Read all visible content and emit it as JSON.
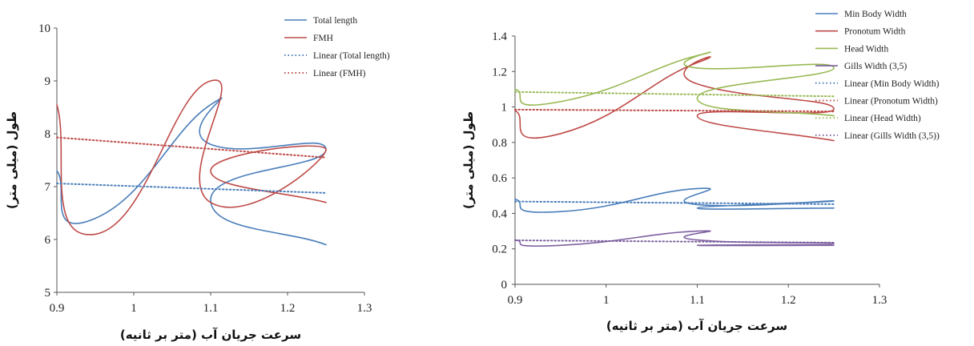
{
  "chart_data": [
    {
      "type": "line",
      "xlabel": "سرعت جریان آب (متر بر ثانیه)",
      "ylabel": "طول (میلی متر)",
      "xlim": [
        0.9,
        1.3
      ],
      "ylim": [
        5,
        10
      ],
      "xticks": [
        "0.9",
        "1",
        "1.1",
        "1.2",
        "1.3"
      ],
      "yticks": [
        "5",
        "6",
        "7",
        "8",
        "9",
        "10"
      ],
      "legend_position": "top-right-outside",
      "series": [
        {
          "name": "Total length",
          "color": "#4a7ebb",
          "style": "solid",
          "points": [
            [
              0.9,
              7.3
            ],
            [
              0.95,
              6.4
            ],
            [
              1.1,
              8.55
            ],
            [
              1.1,
              7.8
            ],
            [
              1.25,
              7.7
            ],
            [
              1.1,
              6.75
            ],
            [
              1.25,
              5.9
            ]
          ]
        },
        {
          "name": "FMH",
          "color": "#be4b48",
          "style": "solid",
          "points": [
            [
              0.9,
              8.55
            ],
            [
              0.95,
              6.1
            ],
            [
              1.1,
              9.0
            ],
            [
              1.1,
              6.7
            ],
            [
              1.25,
              7.7
            ],
            [
              1.1,
              7.3
            ],
            [
              1.25,
              6.7
            ]
          ]
        },
        {
          "name": "Linear (Total length)",
          "color": "#4a7ebb",
          "style": "dotted",
          "points": [
            [
              0.9,
              7.06
            ],
            [
              1.25,
              6.88
            ]
          ]
        },
        {
          "name": "Linear (FMH)",
          "color": "#be4b48",
          "style": "dotted",
          "points": [
            [
              0.9,
              7.93
            ],
            [
              1.25,
              7.55
            ]
          ]
        }
      ]
    },
    {
      "type": "line",
      "xlabel": "سرعت جریان آب (متر بر ثانیه)",
      "ylabel": "طول (میلی متر)",
      "xlim": [
        0.9,
        1.3
      ],
      "ylim": [
        0,
        1.4
      ],
      "xticks": [
        "0.9",
        "1",
        "1.1",
        "1.2",
        "1.3"
      ],
      "yticks": [
        "0",
        "0.2",
        "0.4",
        "0.6",
        "0.8",
        "1",
        "1.2",
        "1.4"
      ],
      "legend_position": "top-right-outside",
      "series": [
        {
          "name": "Min Body Width",
          "color": "#4a7ebb",
          "style": "solid",
          "points": [
            [
              0.9,
              0.48
            ],
            [
              0.95,
              0.41
            ],
            [
              1.1,
              0.54
            ],
            [
              1.1,
              0.45
            ],
            [
              1.25,
              0.47
            ],
            [
              1.1,
              0.43
            ],
            [
              1.25,
              0.43
            ]
          ]
        },
        {
          "name": "Pronotum Width",
          "color": "#be4b48",
          "style": "solid",
          "points": [
            [
              0.9,
              0.98
            ],
            [
              0.95,
              0.85
            ],
            [
              1.1,
              1.25
            ],
            [
              1.1,
              1.13
            ],
            [
              1.25,
              0.99
            ],
            [
              1.1,
              0.95
            ],
            [
              1.25,
              0.81
            ]
          ]
        },
        {
          "name": "Head Width",
          "color": "#98b954",
          "style": "solid",
          "points": [
            [
              0.9,
              1.1
            ],
            [
              0.95,
              1.03
            ],
            [
              1.1,
              1.29
            ],
            [
              1.1,
              1.22
            ],
            [
              1.25,
              1.22
            ],
            [
              1.1,
              1.05
            ],
            [
              1.25,
              0.95
            ]
          ]
        },
        {
          "name": "Gills Width (3,5)",
          "color": "#7d60a0",
          "style": "solid",
          "points": [
            [
              0.9,
              0.25
            ],
            [
              0.95,
              0.22
            ],
            [
              1.1,
              0.3
            ],
            [
              1.1,
              0.25
            ],
            [
              1.25,
              0.23
            ],
            [
              1.1,
              0.22
            ],
            [
              1.25,
              0.22
            ]
          ]
        },
        {
          "name": "Linear (Min Body Width)",
          "color": "#4a7ebb",
          "style": "dotted",
          "points": [
            [
              0.9,
              0.467
            ],
            [
              1.25,
              0.452
            ]
          ]
        },
        {
          "name": "Linear (Pronotum Width)",
          "color": "#be4b48",
          "style": "dotted",
          "points": [
            [
              0.9,
              0.985
            ],
            [
              1.25,
              0.975
            ]
          ]
        },
        {
          "name": "Linear (Head Width)",
          "color": "#98b954",
          "style": "dotted",
          "points": [
            [
              0.9,
              1.085
            ],
            [
              1.25,
              1.06
            ]
          ]
        },
        {
          "name": "Linear (Gills Width (3,5))",
          "color": "#7d60a0",
          "style": "dotted",
          "points": [
            [
              0.9,
              0.248
            ],
            [
              1.25,
              0.235
            ]
          ]
        }
      ]
    }
  ]
}
